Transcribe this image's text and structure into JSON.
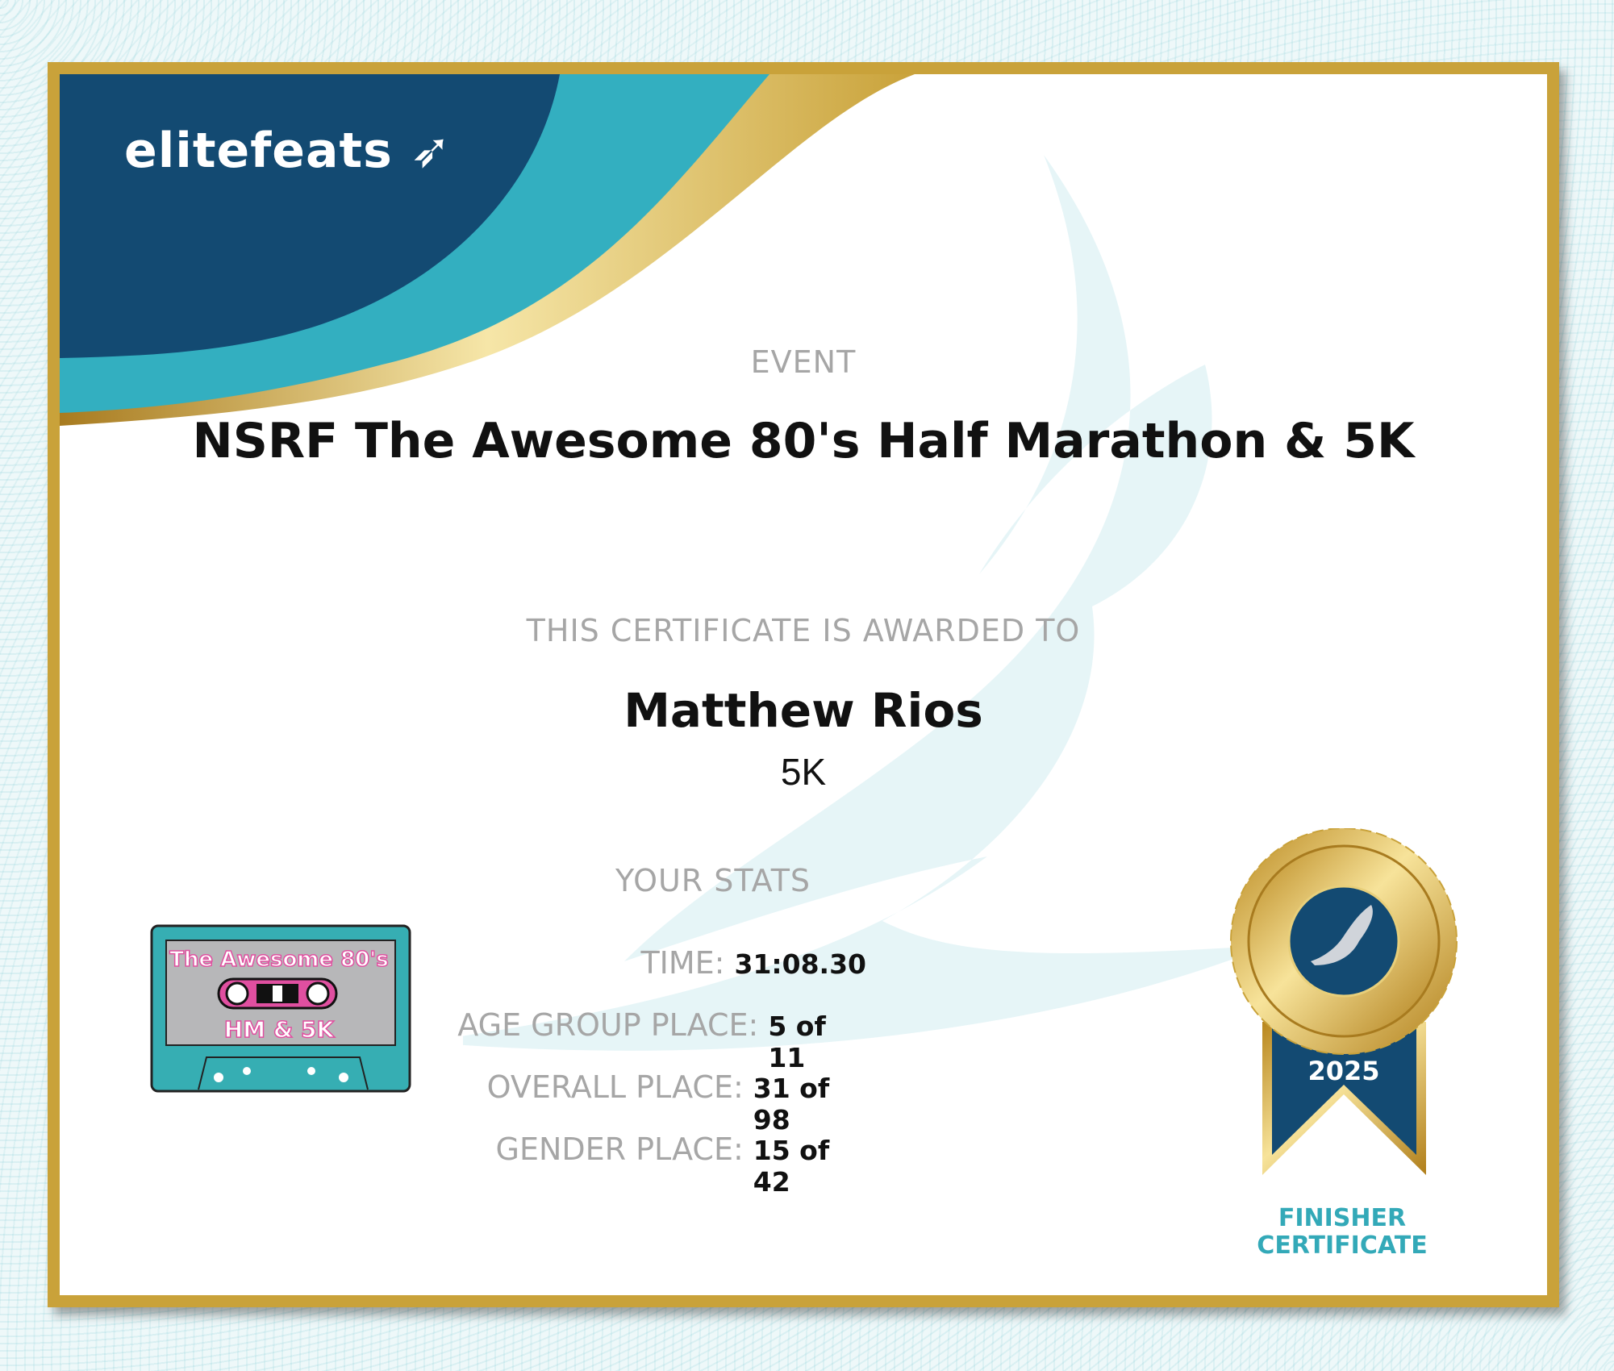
{
  "brand": {
    "logo_text": "elitefeats"
  },
  "event": {
    "label": "EVENT",
    "title": "NSRF The Awesome 80's Half Marathon & 5K"
  },
  "award": {
    "label": "THIS CERTIFICATE IS AWARDED TO",
    "name": "Matthew Rios",
    "distance": "5K"
  },
  "stats": {
    "label": "YOUR STATS",
    "rows": [
      {
        "key": "TIME:",
        "value": "31:08.30"
      },
      {
        "key": "AGE GROUP PLACE:",
        "value": "5 of 11"
      },
      {
        "key": "OVERALL PLACE:",
        "value": "31 of 98"
      },
      {
        "key": "GENDER PLACE:",
        "value": "15 of 42"
      }
    ]
  },
  "event_logo": {
    "line1": "The Awesome 80's",
    "line2": "HM & 5K"
  },
  "medal": {
    "year": "2025",
    "caption_line1": "FINISHER",
    "caption_line2": "CERTIFICATE"
  },
  "colors": {
    "gold": "#c9a23a",
    "navy": "#134a72",
    "teal": "#33afc0"
  }
}
